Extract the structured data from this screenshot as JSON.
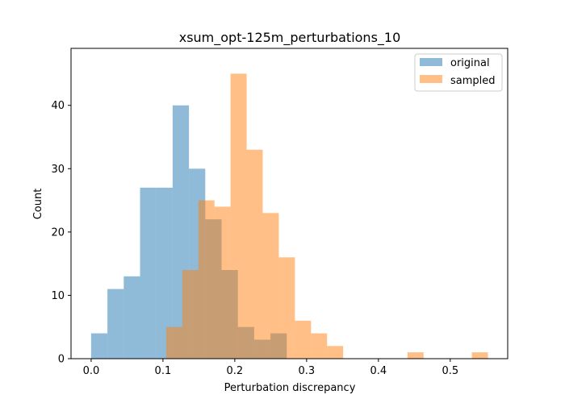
{
  "chart_data": {
    "type": "histogram",
    "title": "xsum_opt-125m_perturbations_10",
    "xlabel": "Perturbation discrepancy",
    "ylabel": "Count",
    "xlim": [
      -0.028,
      0.58
    ],
    "ylim": [
      0,
      49
    ],
    "xticks": [
      0.0,
      0.1,
      0.2,
      0.3,
      0.4,
      0.5
    ],
    "xtick_labels": [
      "0.0",
      "0.1",
      "0.2",
      "0.3",
      "0.4",
      "0.5"
    ],
    "yticks": [
      0,
      10,
      20,
      30,
      40
    ],
    "ytick_labels": [
      "0",
      "10",
      "20",
      "30",
      "40"
    ],
    "grid": false,
    "legend_position": "top-right",
    "series": [
      {
        "name": "original",
        "color": "#1f77b4",
        "alpha": 0.5,
        "bin_edges": [
          0.0,
          0.0227,
          0.0454,
          0.0681,
          0.0908,
          0.1135,
          0.1362,
          0.1589,
          0.1816,
          0.2043,
          0.227,
          0.2497,
          0.2724
        ],
        "counts": [
          4,
          11,
          13,
          27,
          27,
          40,
          30,
          22,
          14,
          5,
          3,
          4
        ]
      },
      {
        "name": "sampled",
        "color": "#ff7f0e",
        "alpha": 0.5,
        "bin_edges": [
          0.1045,
          0.1269,
          0.1493,
          0.1717,
          0.1941,
          0.2165,
          0.2389,
          0.2613,
          0.2837,
          0.3061,
          0.3285,
          0.3509,
          0.3733,
          0.3957,
          0.4181,
          0.4405,
          0.4629,
          0.4853,
          0.5077,
          0.5301,
          0.5525
        ],
        "counts": [
          5,
          14,
          25,
          24,
          45,
          33,
          23,
          16,
          6,
          4,
          2,
          0,
          0,
          0,
          0,
          1,
          0,
          0,
          0,
          1
        ]
      }
    ]
  }
}
